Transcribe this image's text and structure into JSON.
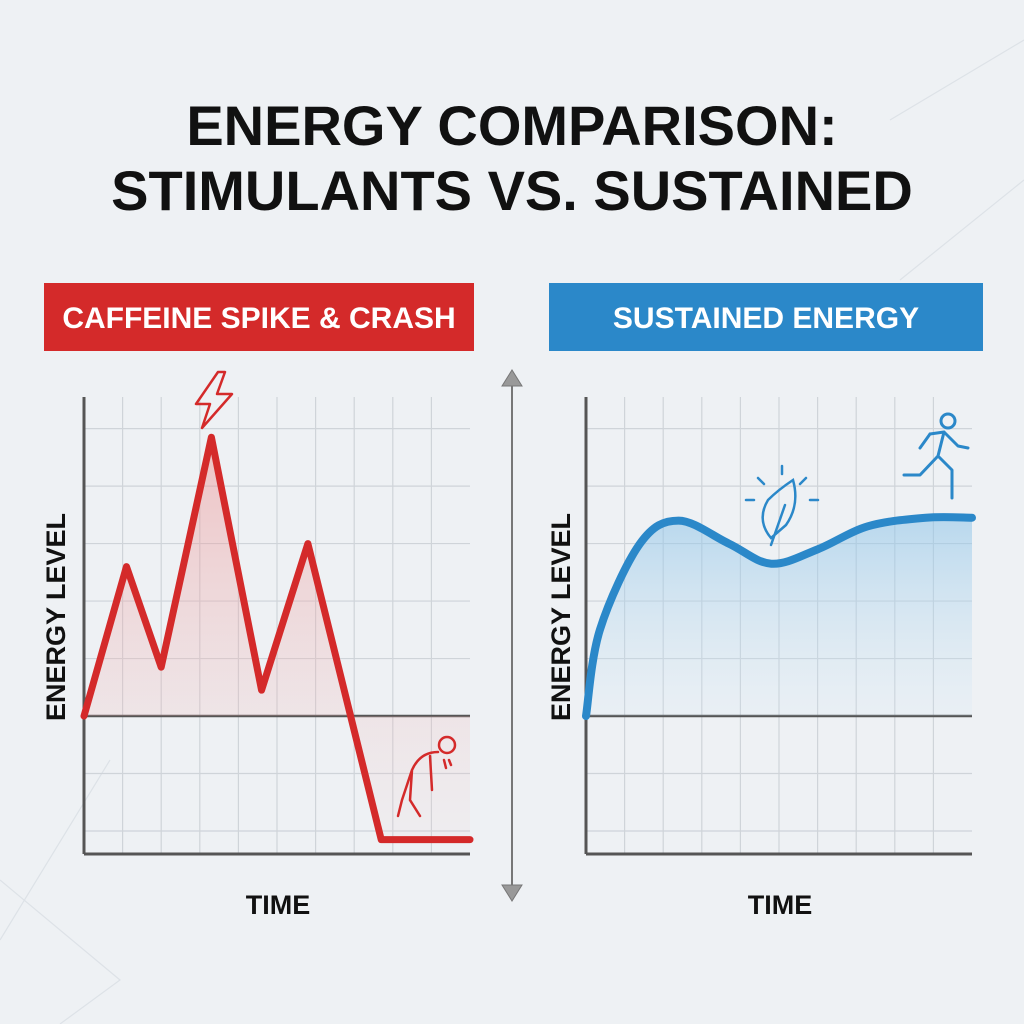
{
  "title_line1": "ENERGY COMPARISON:",
  "title_line2": "STIMULANTS VS. SUSTAINED",
  "colors": {
    "red": "#d42a2a",
    "blue": "#2b88c9",
    "axis": "#555555",
    "grid": "#cfd4d9"
  },
  "chart_data": [
    {
      "type": "line",
      "title": "CAFFEINE SPIKE & CRASH",
      "xlabel": "TIME",
      "ylabel": "ENERGY LEVEL",
      "xlim": [
        0,
        10
      ],
      "ylim": [
        -4.8,
        11.1
      ],
      "grid": true,
      "baseline": 0,
      "x": [
        0,
        1.1,
        2.0,
        3.3,
        4.6,
        5.8,
        7.7,
        10
      ],
      "y": [
        0,
        5.2,
        1.7,
        9.7,
        0.9,
        6.0,
        -4.3,
        -4.3
      ],
      "annotations": [
        "lightning-bolt at peak",
        "exhausted person at crash"
      ]
    },
    {
      "type": "area",
      "title": "SUSTAINED ENERGY",
      "xlabel": "TIME",
      "ylabel": "ENERGY LEVEL",
      "xlim": [
        0,
        10
      ],
      "ylim": [
        -4.8,
        11.1
      ],
      "grid": true,
      "baseline": 0,
      "x": [
        0,
        0.36,
        1.4,
        2.4,
        3.7,
        4.8,
        6.0,
        7.3,
        8.8,
        10
      ],
      "y": [
        0,
        3.0,
        6.0,
        6.8,
        6.0,
        5.3,
        5.8,
        6.6,
        6.9,
        6.9
      ],
      "annotations": [
        "leaf icon at dip",
        "running person at plateau"
      ]
    }
  ]
}
